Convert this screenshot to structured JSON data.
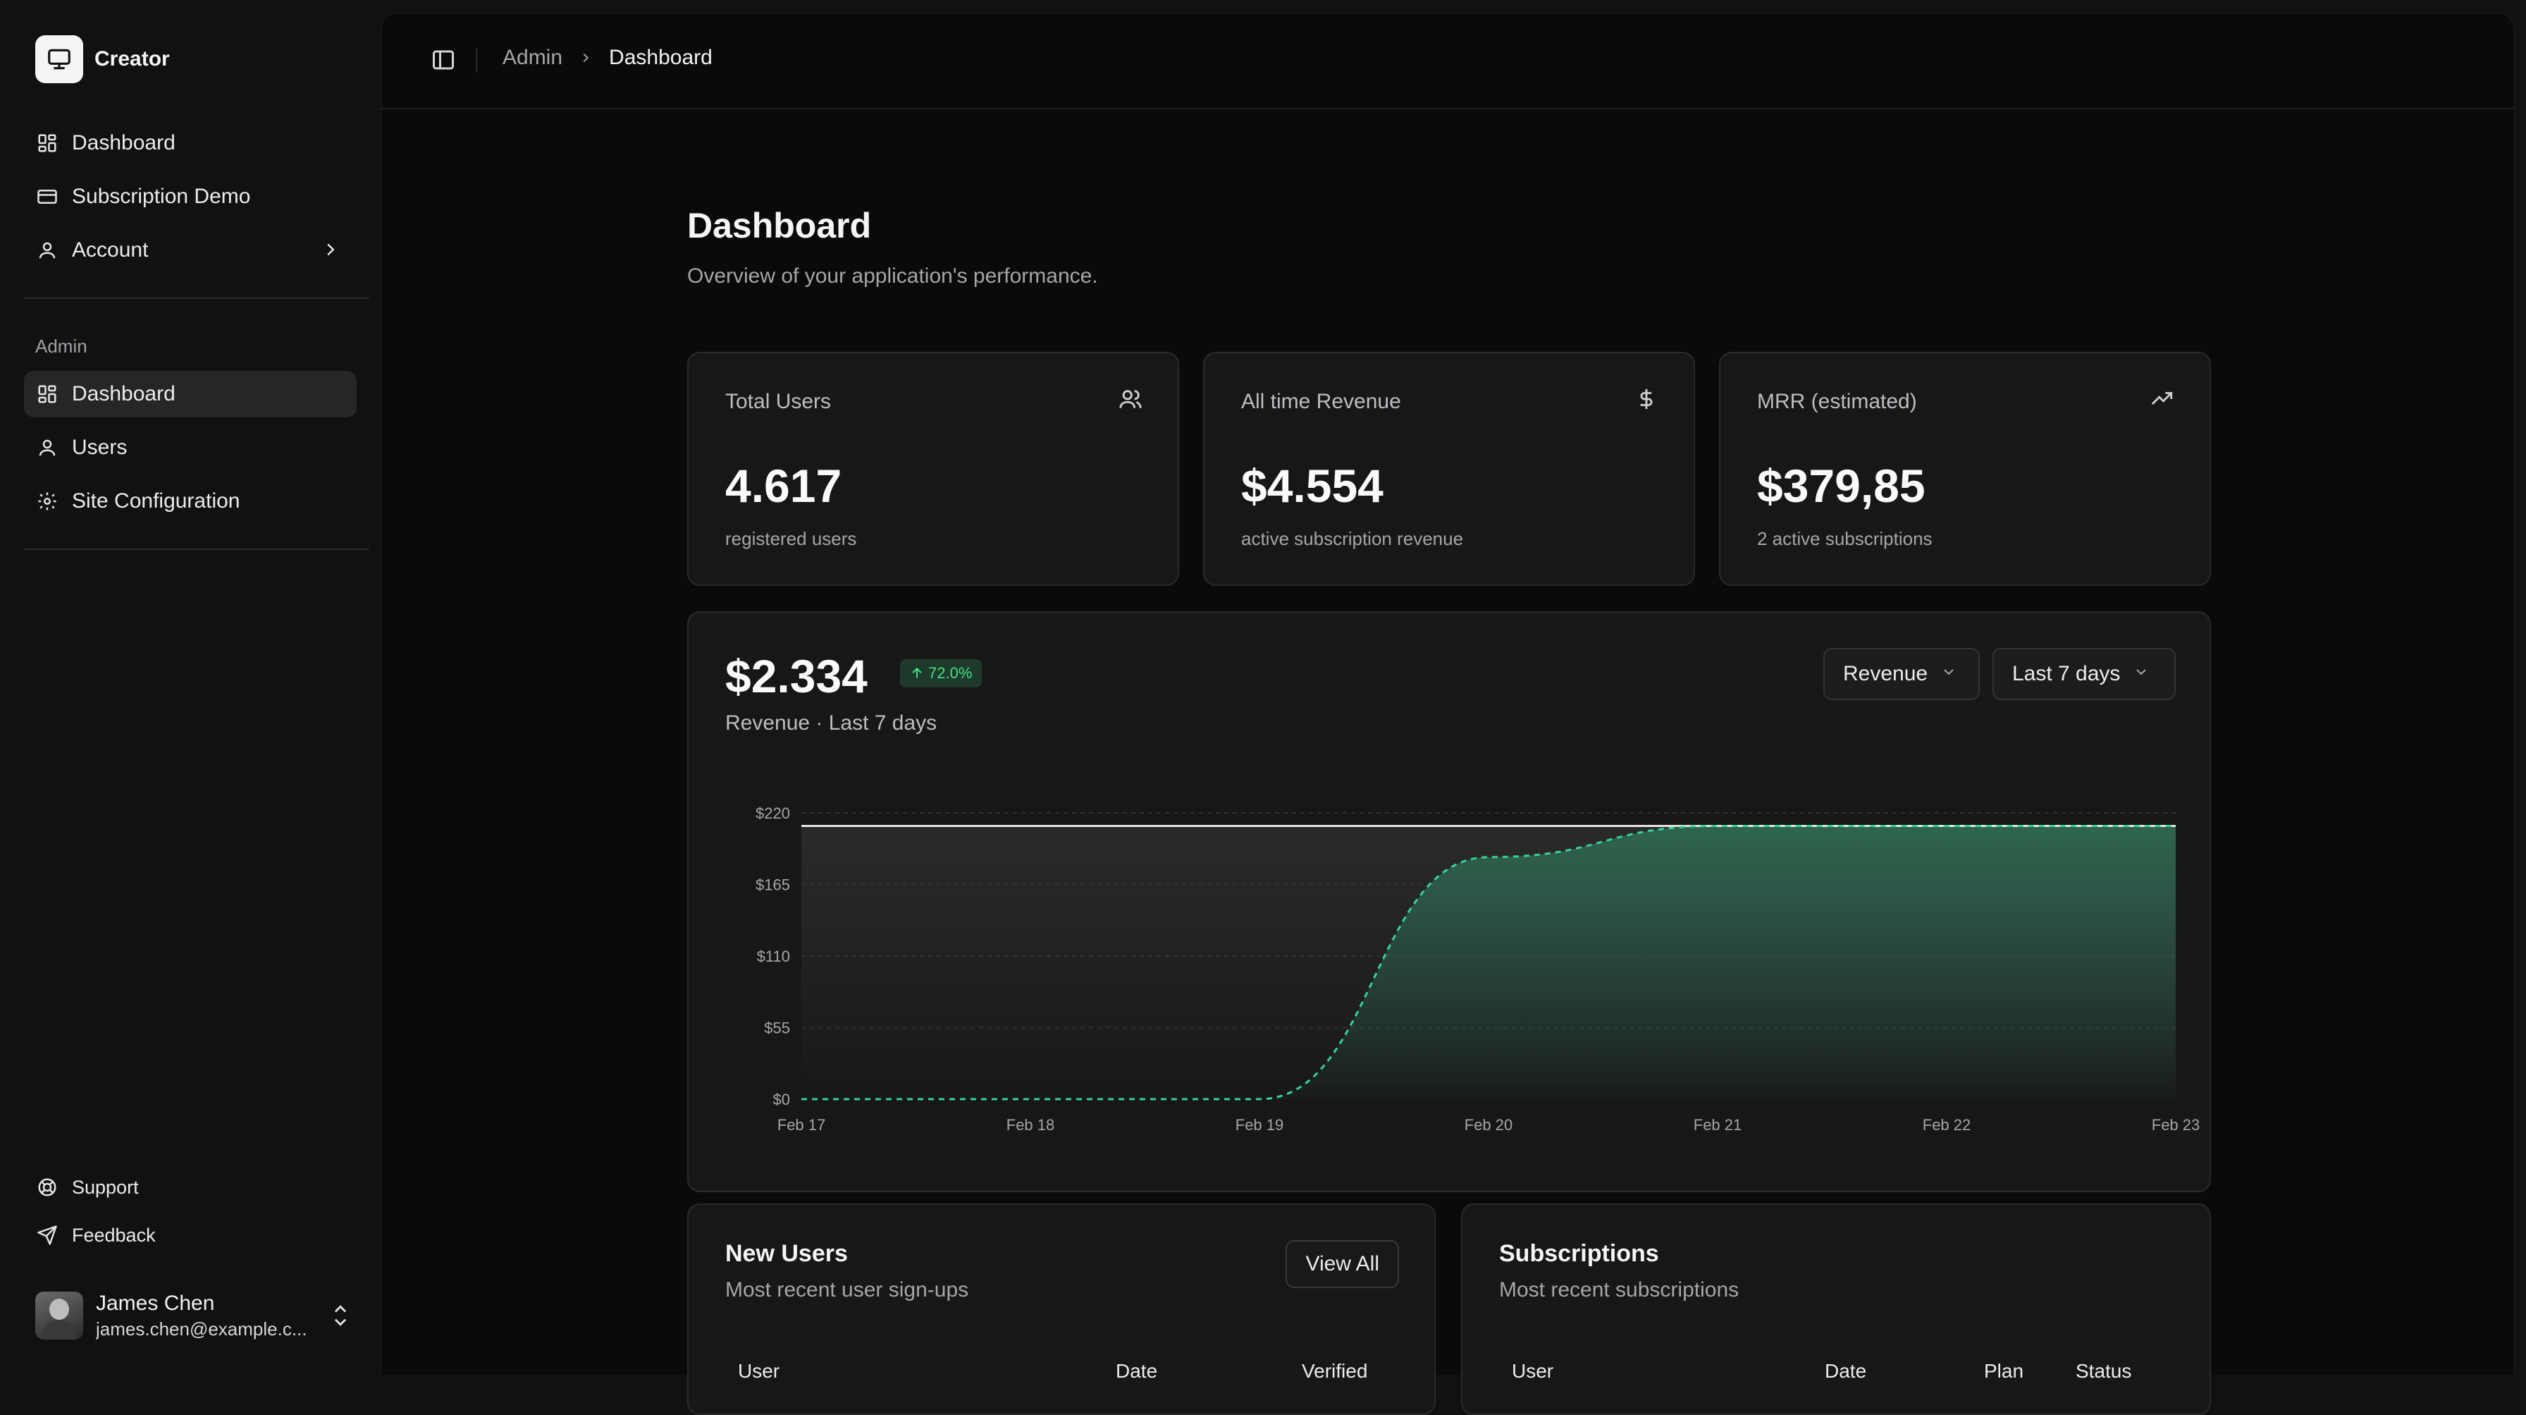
{
  "sidebar": {
    "brand": "Creator",
    "nav": [
      {
        "label": "Dashboard",
        "icon": "layout-grid-icon"
      },
      {
        "label": "Subscription Demo",
        "icon": "credit-card-icon"
      },
      {
        "label": "Account",
        "icon": "user-icon"
      }
    ],
    "admin_label": "Admin",
    "admin_nav": [
      {
        "label": "Dashboard",
        "icon": "layout-grid-icon",
        "active": true
      },
      {
        "label": "Users",
        "icon": "user-icon"
      },
      {
        "label": "Site Configuration",
        "icon": "gear-icon"
      }
    ],
    "footer": [
      {
        "label": "Support",
        "icon": "life-buoy-icon"
      },
      {
        "label": "Feedback",
        "icon": "send-icon"
      }
    ],
    "user": {
      "name": "James Chen",
      "email": "james.chen@example.c..."
    }
  },
  "breadcrumb": {
    "parent": "Admin",
    "current": "Dashboard"
  },
  "page": {
    "title": "Dashboard",
    "subtitle": "Overview of your application's performance."
  },
  "stats": [
    {
      "label": "Total Users",
      "value": "4.617",
      "sub": "registered users",
      "icon": "users-icon"
    },
    {
      "label": "All time Revenue",
      "value": "$4.554",
      "sub": "active subscription revenue",
      "icon": "dollar-icon"
    },
    {
      "label": "MRR (estimated)",
      "value": "$379,85",
      "sub": "2 active subscriptions",
      "icon": "trending-up-icon"
    }
  ],
  "revenue": {
    "value": "$2.334",
    "change": "72.0%",
    "subtitle": "Revenue · Last 7 days",
    "metric_select": "Revenue",
    "range_select": "Last 7 days"
  },
  "chart_data": {
    "type": "area",
    "categories": [
      "Feb 17",
      "Feb 18",
      "Feb 19",
      "Feb 20",
      "Feb 21",
      "Feb 22",
      "Feb 23"
    ],
    "y_ticks": [
      "$0",
      "$55",
      "$110",
      "$165",
      "$220"
    ],
    "ylim": [
      0,
      220
    ],
    "series": [
      {
        "values": [
          210,
          210,
          210,
          210,
          210,
          210,
          210
        ]
      },
      {
        "values": [
          0,
          0,
          0,
          186,
          210,
          210,
          210
        ]
      }
    ],
    "colors": {
      "line": "#e5e5e5",
      "area": "#2f6b53",
      "dashed": "#34d399"
    },
    "grid": true
  },
  "new_users": {
    "title": "New Users",
    "subtitle": "Most recent user sign-ups",
    "button": "View All",
    "columns": [
      "User",
      "Date",
      "Verified"
    ]
  },
  "subscriptions": {
    "title": "Subscriptions",
    "subtitle": "Most recent subscriptions",
    "columns": [
      "User",
      "Date",
      "Plan",
      "Status"
    ]
  }
}
